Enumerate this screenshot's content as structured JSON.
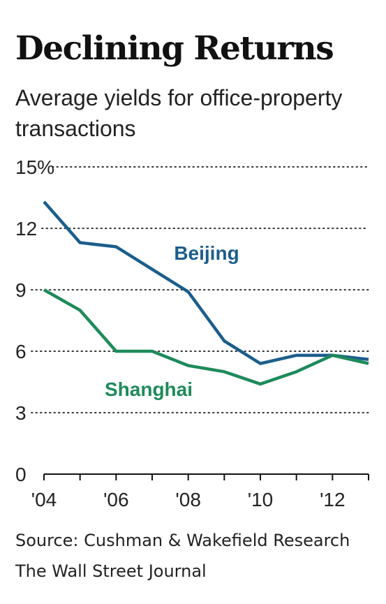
{
  "chart_data": {
    "type": "line",
    "title": "Declining Returns",
    "subtitle": "Average yields for office-property transactions",
    "x": [
      2004,
      2005,
      2006,
      2007,
      2008,
      2009,
      2010,
      2011,
      2012,
      2013
    ],
    "x_tick_values": [
      2004,
      2006,
      2008,
      2010,
      2012
    ],
    "x_tick_labels": [
      "'04",
      "'06",
      "'08",
      "'10",
      "'12"
    ],
    "y_ticks": [
      0,
      3,
      6,
      9,
      12,
      15
    ],
    "y_tick_labels": [
      "0",
      "3",
      "6",
      "9",
      "12",
      "15%"
    ],
    "ylim": [
      0,
      15
    ],
    "xlim": [
      2004,
      2013
    ],
    "grid": "horizontal dotted",
    "series": [
      {
        "name": "Beijing",
        "color": "#1c5e8c",
        "values": [
          13.3,
          11.3,
          11.1,
          10.0,
          8.9,
          6.5,
          5.4,
          5.8,
          5.8,
          5.6
        ]
      },
      {
        "name": "Shanghai",
        "color": "#1e8a5a",
        "values": [
          9.0,
          8.0,
          6.0,
          6.0,
          5.3,
          5.0,
          4.4,
          5.0,
          5.8,
          5.4
        ]
      }
    ]
  },
  "footer": {
    "source": "Source: Cushman & Wakefield Research",
    "publisher": "The Wall Street Journal"
  }
}
